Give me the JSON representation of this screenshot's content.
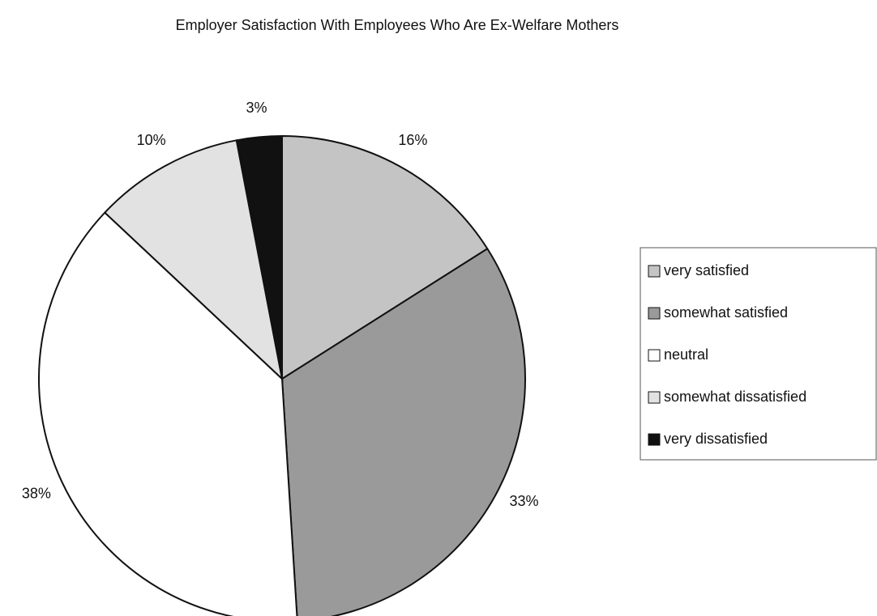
{
  "chart_data": {
    "type": "pie",
    "title": "Employer Satisfaction With Employees Who Are Ex-Welfare Mothers",
    "categories": [
      "very satisfied",
      "somewhat satisfied",
      "neutral",
      "somewhat dissatisfied",
      "very dissatisfied"
    ],
    "values": [
      16,
      33,
      38,
      10,
      3
    ],
    "value_labels": [
      "16%",
      "33%",
      "38%",
      "10%",
      "3%"
    ],
    "colors": [
      "#c4c4c4",
      "#9a9a9a",
      "#ffffff",
      "#e2e2e2",
      "#111111"
    ],
    "legend": "right"
  }
}
